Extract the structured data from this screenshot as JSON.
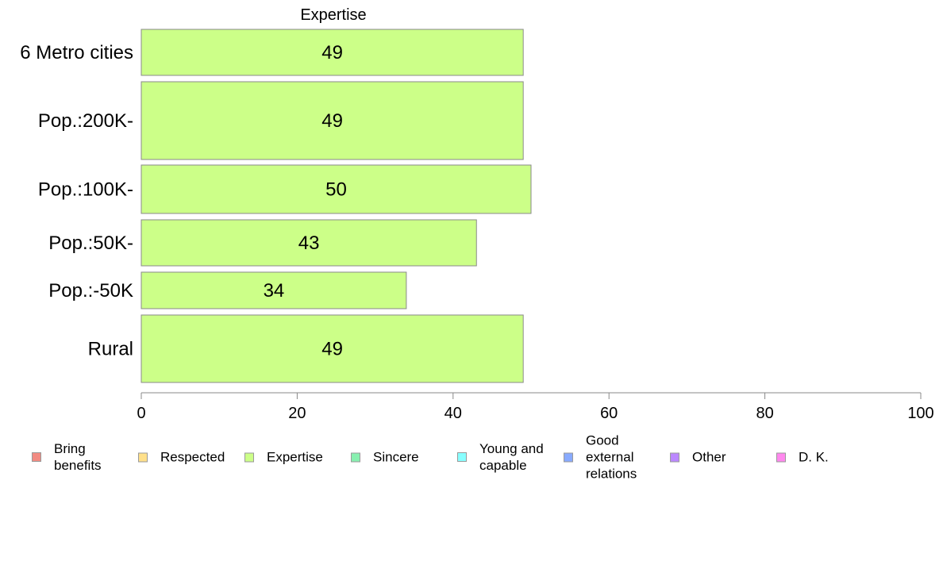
{
  "chart_data": {
    "type": "bar",
    "orientation": "horizontal",
    "title": "Expertise",
    "categories": [
      "6 Metro cities",
      "Pop.:200K-",
      "Pop.:100K-",
      "Pop.:50K-",
      "Pop.:-50K",
      "Rural"
    ],
    "series": [
      {
        "name": "Expertise",
        "values": [
          49,
          49,
          50,
          43,
          34,
          49
        ],
        "color": "#ccff88"
      }
    ],
    "xlim": [
      0,
      100
    ],
    "xticks": [
      0,
      20,
      40,
      60,
      80,
      100
    ],
    "grid": false,
    "legend": {
      "placement": "bottom",
      "items": [
        {
          "label": "Bring\nbenefits",
          "color": "#f28b82"
        },
        {
          "label": "Respected",
          "color": "#ffe08a"
        },
        {
          "label": "Expertise",
          "color": "#ccff88"
        },
        {
          "label": "Sincere",
          "color": "#88f0b0"
        },
        {
          "label": "Young and\ncapable",
          "color": "#88ffff"
        },
        {
          "label": "Good\nexternal\nrelations",
          "color": "#88aaff"
        },
        {
          "label": "Other",
          "color": "#bb88ff"
        },
        {
          "label": "D. K.",
          "color": "#ff88ee"
        }
      ]
    }
  }
}
